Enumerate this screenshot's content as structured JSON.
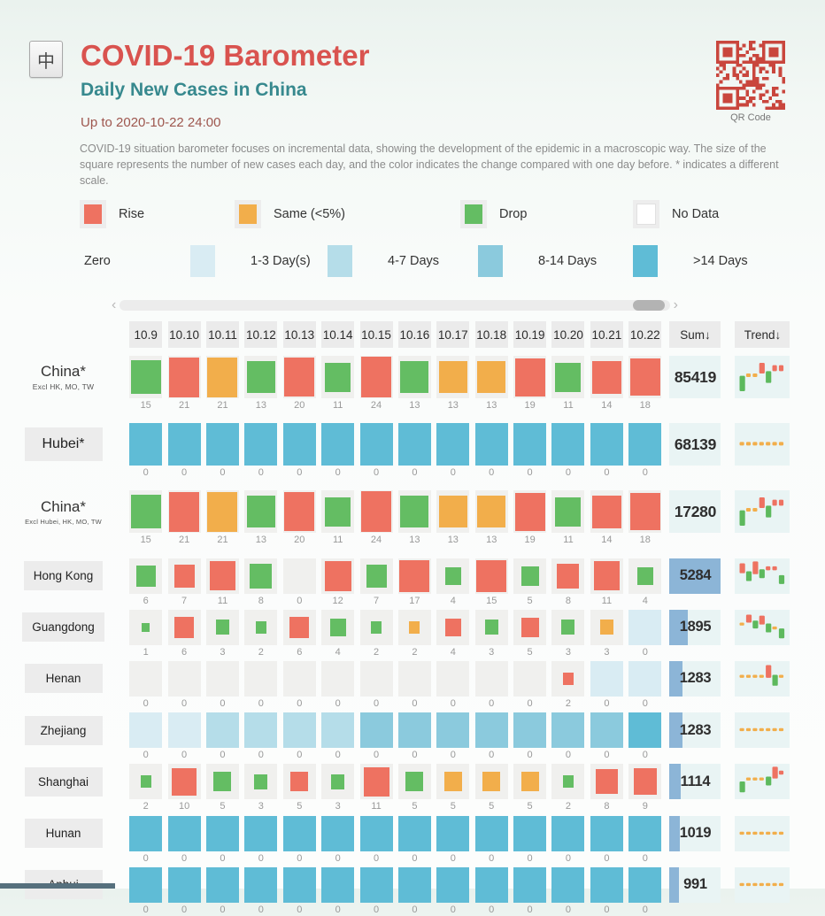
{
  "header": {
    "logo_char": "中",
    "title": "COVID-19 Barometer",
    "subtitle": "Daily New Cases in China",
    "updated": "Up to 2020-10-22 24:00",
    "qr_caption": "QR Code"
  },
  "description": "COVID-19 situation barometer focuses on incremental data, showing the development of the epidemic in a macroscopic way. The size of the square represents the number of new cases each day, and the color indicates the change compared with one day before. * indicates a different scale.",
  "colors": {
    "rise": "#ee7261",
    "same": "#f2ae4b",
    "drop": "#64bd63",
    "no_data": "#ffffff",
    "zero_1_3": "#d9ecf3",
    "zero_4_7": "#b5dde9",
    "zero_8_14": "#8bcadd",
    "zero_gt14": "#5fbcd6",
    "empty_cell": "#f0f0ee",
    "sum_bar": "#8cb5d7",
    "trend_drop": "#5db95d",
    "title_accent": "#d9534f",
    "subtitle_accent": "#37898e",
    "qr": "#c9463d"
  },
  "legend_change": [
    {
      "label": "Rise",
      "key": "rise"
    },
    {
      "label": "Same (<5%)",
      "key": "same"
    },
    {
      "label": "Drop",
      "key": "drop"
    },
    {
      "label": "No Data",
      "key": "no_data"
    }
  ],
  "legend_zero": {
    "label": "Zero",
    "items": [
      {
        "label": "1-3 Day(s)",
        "key": "zero_1_3"
      },
      {
        "label": "4-7 Days",
        "key": "zero_4_7"
      },
      {
        "label": "8-14 Days",
        "key": "zero_8_14"
      },
      {
        "label": ">14 Days",
        "key": "zero_gt14"
      }
    ]
  },
  "scrollbar": {
    "left_arrow": "‹",
    "right_arrow": "›"
  },
  "chart_data": {
    "type": "heatmap",
    "title": "COVID-19 Barometer",
    "subtitle": "Daily New Cases in China",
    "updated": "Up to 2020-10-22 24:00",
    "x_dates": [
      "10.9",
      "10.10",
      "10.11",
      "10.12",
      "10.13",
      "10.14",
      "10.15",
      "10.16",
      "10.17",
      "10.18",
      "10.19",
      "10.20",
      "10.21",
      "10.22"
    ],
    "sum_header": "Sum↓",
    "trend_header": "Trend↓",
    "legend_note": "cell color = day-over-day change (rise/same/drop) or consecutive zero-days streak; square size = daily new cases",
    "rows": [
      {
        "name": "China*",
        "subname": "Excl HK, MO, TW",
        "boxed": false,
        "size": "lg",
        "sum": 85419,
        "sum_bar": false,
        "values": [
          15,
          21,
          21,
          13,
          20,
          11,
          24,
          13,
          13,
          13,
          19,
          11,
          14,
          18
        ],
        "cells": [
          "drop",
          "rise",
          "same",
          "drop",
          "rise",
          "drop",
          "rise",
          "drop",
          "same",
          "same",
          "rise",
          "drop",
          "rise",
          "rise"
        ],
        "trend": [
          [
            "bar",
            "g",
            17,
            13
          ],
          [
            "dash",
            "o",
            15,
            3
          ],
          [
            "dash",
            "o",
            15,
            3
          ],
          [
            "bar",
            "r",
            6,
            9
          ],
          [
            "bar",
            "g",
            13,
            10
          ],
          [
            "dash",
            "r",
            8,
            5
          ],
          [
            "dash",
            "r",
            8,
            5
          ]
        ]
      },
      {
        "name": "Hubei*",
        "subname": "",
        "boxed": true,
        "size": "lg",
        "sum": 68139,
        "sum_bar": false,
        "values": [
          0,
          0,
          0,
          0,
          0,
          0,
          0,
          0,
          0,
          0,
          0,
          0,
          0,
          0
        ],
        "cells": [
          "zero_gt14",
          "zero_gt14",
          "zero_gt14",
          "zero_gt14",
          "zero_gt14",
          "zero_gt14",
          "zero_gt14",
          "zero_gt14",
          "zero_gt14",
          "zero_gt14",
          "zero_gt14",
          "zero_gt14",
          "zero_gt14",
          "zero_gt14"
        ],
        "trend": [
          [
            "dash",
            "o",
            16,
            3
          ],
          [
            "dash",
            "o",
            16,
            3
          ],
          [
            "dash",
            "o",
            16,
            3
          ],
          [
            "dash",
            "o",
            16,
            3
          ],
          [
            "dash",
            "o",
            16,
            3
          ],
          [
            "dash",
            "o",
            16,
            3
          ],
          [
            "dash",
            "o",
            16,
            3
          ]
        ]
      },
      {
        "name": "China*",
        "subname": "Excl Hubei, HK, MO, TW",
        "boxed": false,
        "size": "lg",
        "sum": 17280,
        "sum_bar": false,
        "values": [
          15,
          21,
          21,
          13,
          20,
          11,
          24,
          13,
          13,
          13,
          19,
          11,
          14,
          18
        ],
        "cells": [
          "drop",
          "rise",
          "same",
          "drop",
          "rise",
          "drop",
          "rise",
          "drop",
          "same",
          "same",
          "rise",
          "drop",
          "rise",
          "rise"
        ],
        "trend": [
          [
            "bar",
            "g",
            17,
            13
          ],
          [
            "dash",
            "o",
            15,
            3
          ],
          [
            "dash",
            "o",
            15,
            3
          ],
          [
            "bar",
            "r",
            6,
            9
          ],
          [
            "bar",
            "g",
            13,
            10
          ],
          [
            "dash",
            "r",
            8,
            5
          ],
          [
            "dash",
            "r",
            8,
            5
          ]
        ]
      },
      {
        "name": "Hong Kong",
        "subname": "",
        "boxed": true,
        "size": "sm",
        "sum": 5284,
        "sum_bar": true,
        "values": [
          6,
          7,
          11,
          8,
          0,
          12,
          7,
          17,
          4,
          15,
          5,
          8,
          11,
          4
        ],
        "cells": [
          "drop",
          "rise",
          "rise",
          "drop",
          "empty",
          "rise",
          "drop",
          "rise",
          "drop",
          "rise",
          "drop",
          "rise",
          "rise",
          "drop"
        ],
        "trend": [
          [
            "bar",
            "r",
            5,
            10
          ],
          [
            "bar",
            "g",
            13,
            10
          ],
          [
            "bar",
            "r",
            3,
            13
          ],
          [
            "bar",
            "g",
            11,
            9
          ],
          [
            "dash",
            "r",
            8,
            4
          ],
          [
            "dash",
            "r",
            8,
            4
          ],
          [
            "bar",
            "g",
            17,
            9
          ]
        ]
      },
      {
        "name": "Guangdong",
        "subname": "",
        "boxed": true,
        "size": "sm",
        "sum": 1895,
        "sum_bar": true,
        "values": [
          1,
          6,
          3,
          2,
          6,
          4,
          2,
          2,
          4,
          3,
          5,
          3,
          3,
          0
        ],
        "cells": [
          "drop",
          "rise",
          "drop",
          "drop",
          "rise",
          "drop",
          "drop",
          "same",
          "rise",
          "drop",
          "rise",
          "drop",
          "same",
          "zero_1_3"
        ],
        "trend": [
          [
            "dash",
            "o",
            13,
            3
          ],
          [
            "bar",
            "r",
            5,
            8
          ],
          [
            "bar",
            "g",
            11,
            8
          ],
          [
            "bar",
            "r",
            6,
            9
          ],
          [
            "bar",
            "g",
            14,
            9
          ],
          [
            "dash",
            "o",
            17,
            3
          ],
          [
            "bar",
            "g",
            19,
            10
          ]
        ]
      },
      {
        "name": "Henan",
        "subname": "",
        "boxed": true,
        "size": "sm",
        "sum": 1283,
        "sum_bar": true,
        "values": [
          0,
          0,
          0,
          0,
          0,
          0,
          0,
          0,
          0,
          0,
          0,
          2,
          0,
          0
        ],
        "cells": [
          "empty",
          "empty",
          "empty",
          "empty",
          "empty",
          "empty",
          "empty",
          "empty",
          "empty",
          "empty",
          "empty",
          "rise",
          "zero_1_3",
          "zero_1_3"
        ],
        "trend": [
          [
            "dash",
            "o",
            14,
            3
          ],
          [
            "dash",
            "o",
            14,
            3
          ],
          [
            "dash",
            "o",
            14,
            3
          ],
          [
            "dash",
            "o",
            14,
            3
          ],
          [
            "bar",
            "r",
            4,
            13
          ],
          [
            "bar",
            "g",
            14,
            11
          ],
          [
            "dash",
            "o",
            14,
            3
          ]
        ]
      },
      {
        "name": "Zhejiang",
        "subname": "",
        "boxed": true,
        "size": "sm",
        "sum": 1283,
        "sum_bar": true,
        "values": [
          0,
          0,
          0,
          0,
          0,
          0,
          0,
          0,
          0,
          0,
          0,
          0,
          0,
          0
        ],
        "cells": [
          "zero_1_3",
          "zero_1_3",
          "zero_4_7",
          "zero_4_7",
          "zero_4_7",
          "zero_4_7",
          "zero_8_14",
          "zero_8_14",
          "zero_8_14",
          "zero_8_14",
          "zero_8_14",
          "zero_8_14",
          "zero_8_14",
          "zero_gt14"
        ],
        "trend": [
          [
            "dash",
            "o",
            16,
            3
          ],
          [
            "dash",
            "o",
            16,
            3
          ],
          [
            "dash",
            "o",
            16,
            3
          ],
          [
            "dash",
            "o",
            16,
            3
          ],
          [
            "dash",
            "o",
            16,
            3
          ],
          [
            "dash",
            "o",
            16,
            3
          ],
          [
            "dash",
            "o",
            16,
            3
          ]
        ]
      },
      {
        "name": "Shanghai",
        "subname": "",
        "boxed": true,
        "size": "sm",
        "sum": 1114,
        "sum_bar": true,
        "values": [
          2,
          10,
          5,
          3,
          5,
          3,
          11,
          5,
          5,
          5,
          5,
          2,
          8,
          9
        ],
        "cells": [
          "drop",
          "rise",
          "drop",
          "drop",
          "rise",
          "drop",
          "rise",
          "drop",
          "same",
          "same",
          "same",
          "drop",
          "rise",
          "rise"
        ],
        "trend": [
          [
            "bar",
            "g",
            18,
            11
          ],
          [
            "dash",
            "o",
            14,
            3
          ],
          [
            "dash",
            "o",
            14,
            3
          ],
          [
            "dash",
            "o",
            14,
            3
          ],
          [
            "bar",
            "g",
            13,
            9
          ],
          [
            "bar",
            "r",
            3,
            12
          ],
          [
            "dash",
            "r",
            7,
            4
          ]
        ]
      },
      {
        "name": "Hunan",
        "subname": "",
        "boxed": true,
        "size": "sm",
        "sum": 1019,
        "sum_bar": true,
        "values": [
          0,
          0,
          0,
          0,
          0,
          0,
          0,
          0,
          0,
          0,
          0,
          0,
          0,
          0
        ],
        "cells": [
          "zero_gt14",
          "zero_gt14",
          "zero_gt14",
          "zero_gt14",
          "zero_gt14",
          "zero_gt14",
          "zero_gt14",
          "zero_gt14",
          "zero_gt14",
          "zero_gt14",
          "zero_gt14",
          "zero_gt14",
          "zero_gt14",
          "zero_gt14"
        ],
        "trend": [
          [
            "dash",
            "o",
            16,
            3
          ],
          [
            "dash",
            "o",
            16,
            3
          ],
          [
            "dash",
            "o",
            16,
            3
          ],
          [
            "dash",
            "o",
            16,
            3
          ],
          [
            "dash",
            "o",
            16,
            3
          ],
          [
            "dash",
            "o",
            16,
            3
          ],
          [
            "dash",
            "o",
            16,
            3
          ]
        ]
      },
      {
        "name": "Anhui",
        "subname": "",
        "boxed": true,
        "size": "sm",
        "sum": 991,
        "sum_bar": true,
        "values": [
          0,
          0,
          0,
          0,
          0,
          0,
          0,
          0,
          0,
          0,
          0,
          0,
          0,
          0
        ],
        "cells": [
          "zero_gt14",
          "zero_gt14",
          "zero_gt14",
          "zero_gt14",
          "zero_gt14",
          "zero_gt14",
          "zero_gt14",
          "zero_gt14",
          "zero_gt14",
          "zero_gt14",
          "zero_gt14",
          "zero_gt14",
          "zero_gt14",
          "zero_gt14"
        ],
        "trend": [
          [
            "dash",
            "o",
            16,
            3
          ],
          [
            "dash",
            "o",
            16,
            3
          ],
          [
            "dash",
            "o",
            16,
            3
          ],
          [
            "dash",
            "o",
            16,
            3
          ],
          [
            "dash",
            "o",
            16,
            3
          ],
          [
            "dash",
            "o",
            16,
            3
          ],
          [
            "dash",
            "o",
            16,
            3
          ]
        ]
      }
    ]
  }
}
